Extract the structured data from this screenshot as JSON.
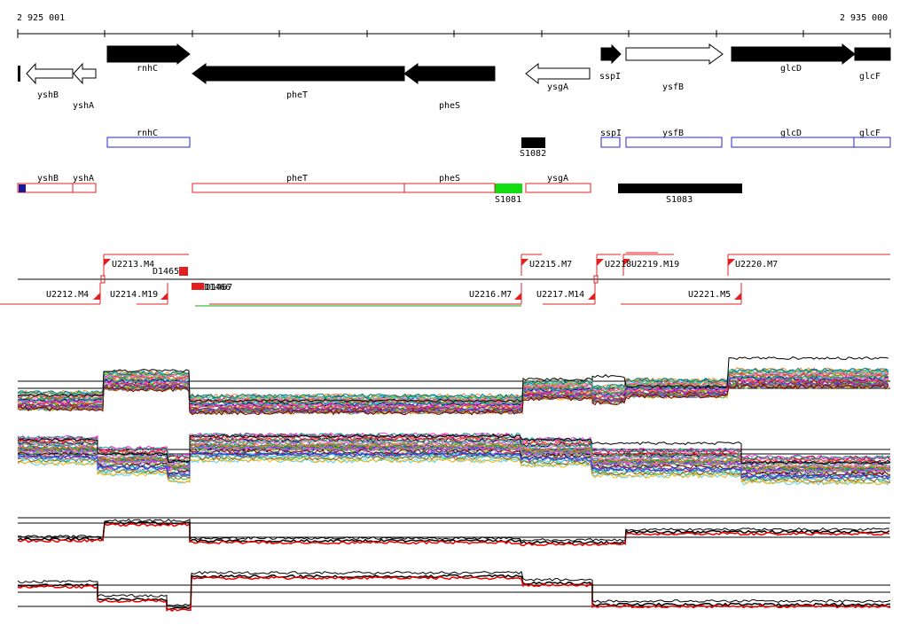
{
  "ruler": {
    "start_label": "2 925 001",
    "end_label": "2 935 000"
  },
  "colors": {
    "gene_fill_dark": "#000000",
    "gene_fill_light": "#ffffff",
    "annotation_blue": "#2a2acc",
    "annotation_red": "#e02020",
    "highlight_green": "#11dd11",
    "signal_red": "#ee0000"
  },
  "genes": [
    {
      "name": "yshB",
      "strand": "-",
      "filled": false
    },
    {
      "name": "yshA",
      "strand": "-",
      "filled": false
    },
    {
      "name": "rnhC",
      "strand": "+",
      "filled": true
    },
    {
      "name": "pheT",
      "strand": "-",
      "filled": true
    },
    {
      "name": "pheS",
      "strand": "-",
      "filled": true
    },
    {
      "name": "ysgA",
      "strand": "-",
      "filled": false
    },
    {
      "name": "sspI",
      "strand": "+",
      "filled": true
    },
    {
      "name": "ysfB",
      "strand": "+",
      "filled": false
    },
    {
      "name": "glcD",
      "strand": "+",
      "filled": true
    },
    {
      "name": "glcF",
      "strand": "+",
      "filled": true
    }
  ],
  "blue_annotations": [
    "rnhC",
    "sspI",
    "ysfB",
    "glcD",
    "glcF"
  ],
  "red_annotations": [
    "yshB",
    "yshA",
    "pheT",
    "pheS",
    "ysgA"
  ],
  "s_features": [
    {
      "label": "S1082",
      "color": "#000000"
    },
    {
      "label": "S1081",
      "color": "#11dd11"
    },
    {
      "label": "S1083",
      "color": "#000000"
    }
  ],
  "upper_segments": [
    "U2213.M4",
    "U2215.M7",
    "U2218",
    "U2219.M19",
    "U2220.M7"
  ],
  "lower_segments": [
    "U2212.M4",
    "U2214.M19",
    "U2216.M7",
    "U2217.M14",
    "U2221.M5"
  ],
  "d_features": [
    "D1465",
    "D1466",
    "D1467"
  ],
  "overlap_labels": {
    "u_pair": "U2218U2219.M19",
    "d_pair": "D1466D1467"
  }
}
